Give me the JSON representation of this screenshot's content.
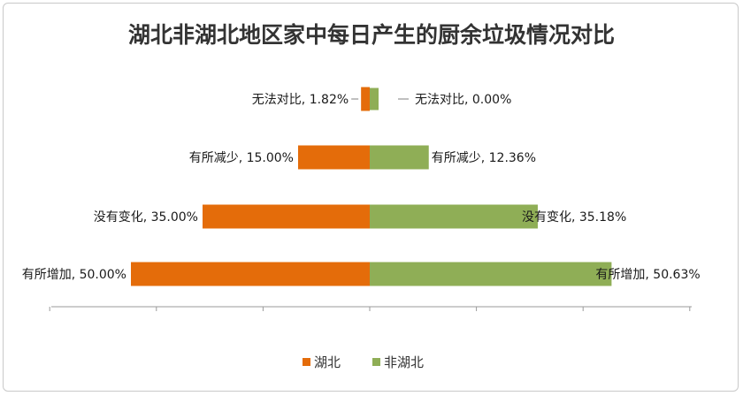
{
  "chart_data": {
    "type": "bar",
    "orientation": "horizontal-diverging",
    "title": "湖北非湖北地区家中每日产生的厨余垃圾情况对比",
    "categories": [
      "无法对比",
      "有所减少",
      "没有变化",
      "有所增加"
    ],
    "series": [
      {
        "name": "湖北",
        "color": "#E46C0A",
        "values": [
          1.82,
          15.0,
          35.0,
          50.0
        ],
        "labels": [
          "无法对比, 1.82%",
          "有所减少, 15.00%",
          "没有变化, 35.00%",
          "有所增加, 50.00%"
        ]
      },
      {
        "name": "非湖北",
        "color": "#8FAE56",
        "values": [
          0.0,
          12.36,
          35.18,
          50.63
        ],
        "labels": [
          "无法对比, 0.00%",
          "有所减少, 12.36%",
          "没有变化, 35.18%",
          "有所增加, 50.63%"
        ]
      }
    ],
    "xlim": [
      -60,
      60
    ],
    "grid": false,
    "legend": "bottom"
  }
}
